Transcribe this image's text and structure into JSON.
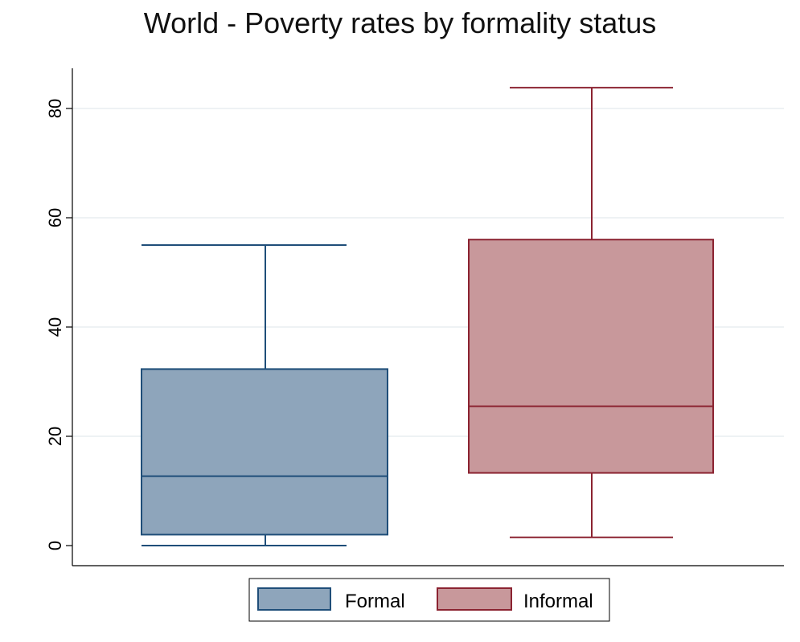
{
  "chart_data": {
    "type": "box",
    "title": "World -  Poverty rates by formality status",
    "xlabel": "",
    "ylabel": "",
    "ylim": [
      -2,
      87
    ],
    "yticks": [
      0,
      20,
      40,
      60,
      80
    ],
    "grid": true,
    "legend_position": "bottom",
    "series": [
      {
        "name": "Formal",
        "min": 0,
        "q1": 2,
        "median": 12.7,
        "q3": 32.3,
        "max": 55,
        "fill": "#8ea5bb",
        "stroke": "#1f4e79"
      },
      {
        "name": "Informal",
        "min": 1.5,
        "q1": 13.3,
        "median": 25.5,
        "q3": 56,
        "max": 83.8,
        "fill": "#c8989b",
        "stroke": "#8b2331"
      }
    ]
  }
}
